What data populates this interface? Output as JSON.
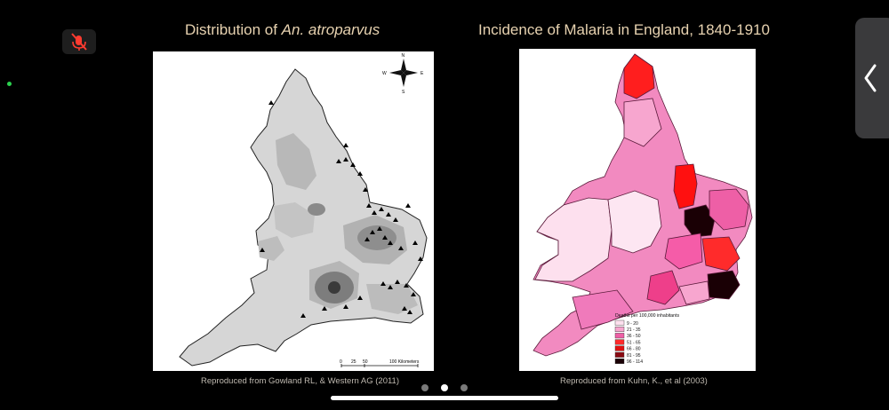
{
  "slide": {
    "left_title_prefix": "Distribution of ",
    "left_title_italic": "An. atroparvus",
    "right_title": "Incidence of Malaria in England, 1840-1910",
    "left_credit": "Reproduced from Gowland RL, & Western AG (2011)",
    "right_credit": "Reproduced from Kuhn, K., et al (2003)"
  },
  "left_map": {
    "compass": {
      "n": "N",
      "s": "S",
      "e": "E",
      "w": "W"
    },
    "scale_labels": [
      "0",
      "25",
      "50",
      "100 Kilometers"
    ],
    "colors": {
      "light": "#d6d6d6",
      "mid": "#b4b4b4",
      "dark": "#8a8a8a",
      "marker": "#000000"
    }
  },
  "right_map": {
    "legend_title": "Deaths per 100,000 inhabitants",
    "legend": [
      {
        "label": "9 - 20",
        "color": "#fde0ee"
      },
      {
        "label": "21 - 35",
        "color": "#f7a6cf"
      },
      {
        "label": "36 - 50",
        "color": "#ee5fa6"
      },
      {
        "label": "51 - 65",
        "color": "#ff2b2b"
      },
      {
        "label": "66 - 80",
        "color": "#e01010"
      },
      {
        "label": "81 - 95",
        "color": "#8a0a12"
      },
      {
        "label": "96 - 114",
        "color": "#1a0005"
      }
    ]
  },
  "controls": {
    "mic_icon": "mic-muted-icon",
    "side_icon": "chevron-left-icon",
    "pages": 3,
    "active_page": 1
  }
}
